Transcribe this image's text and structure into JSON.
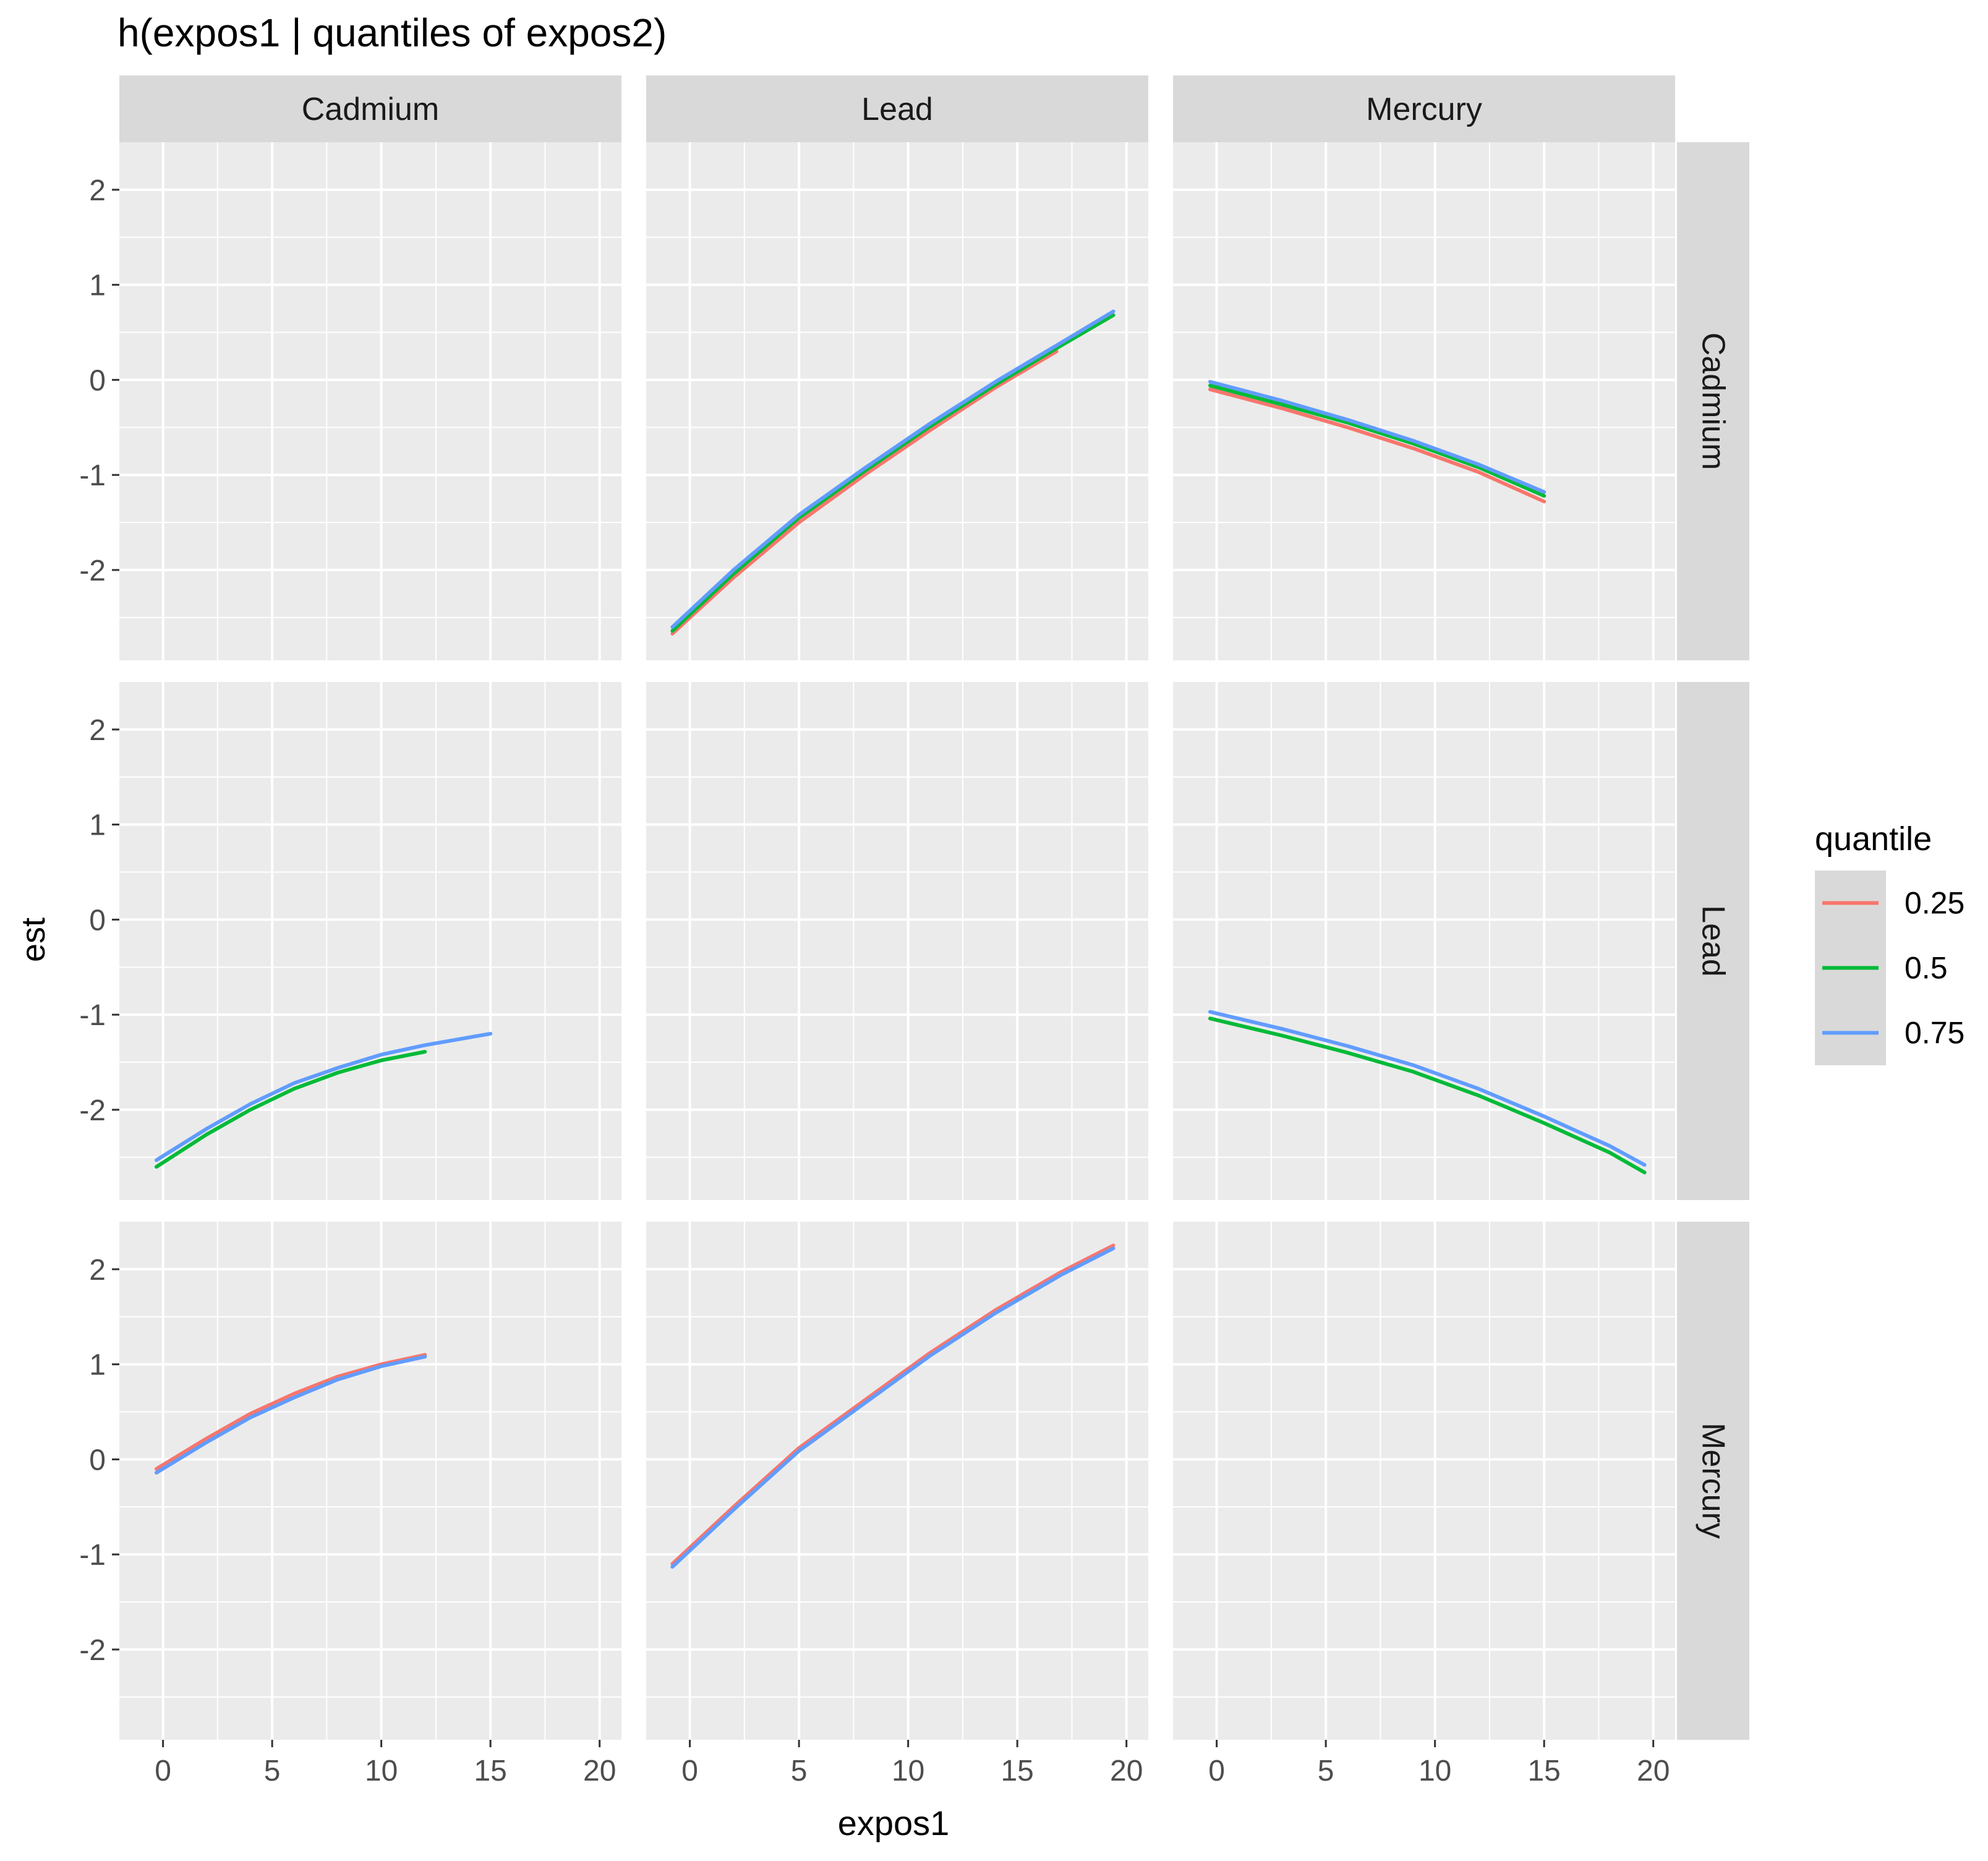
{
  "chart_data": {
    "type": "line",
    "title": "h(expos1 | quantiles of expos2)",
    "xlabel": "expos1",
    "ylabel": "est",
    "col_facets": [
      "Cadmium",
      "Lead",
      "Mercury"
    ],
    "row_facets": [
      "Cadmium",
      "Lead",
      "Mercury"
    ],
    "xlim": [
      -2,
      21
    ],
    "ylim": [
      -2.95,
      2.5
    ],
    "x_ticks": [
      0,
      5,
      10,
      15,
      20
    ],
    "x_tick_labels": [
      "0",
      "5",
      "10",
      "15",
      "20"
    ],
    "y_ticks": [
      -2,
      -1,
      0,
      1,
      2
    ],
    "y_tick_labels": [
      "-2",
      "-1",
      "0",
      "1",
      "2"
    ],
    "grid": true,
    "legend": {
      "title": "quantile",
      "position": "right",
      "entries": [
        {
          "label": "0.25",
          "color": "#F8766D"
        },
        {
          "label": "0.5",
          "color": "#00BA38"
        },
        {
          "label": "0.75",
          "color": "#619CFF"
        }
      ]
    },
    "panels": [
      {
        "row": "Cadmium",
        "col": "Cadmium",
        "series": []
      },
      {
        "row": "Cadmium",
        "col": "Lead",
        "series": [
          {
            "quantile": "0.25",
            "x": [
              -0.8,
              2,
              5,
              8,
              11,
              14,
              16.8
            ],
            "y": [
              -2.67,
              -2.08,
              -1.5,
              -1.0,
              -0.53,
              -0.08,
              0.3
            ]
          },
          {
            "quantile": "0.5",
            "x": [
              -0.8,
              2,
              5,
              8,
              11,
              14,
              17,
              19.4
            ],
            "y": [
              -2.64,
              -2.04,
              -1.45,
              -0.96,
              -0.49,
              -0.05,
              0.36,
              0.68
            ]
          },
          {
            "quantile": "0.75",
            "x": [
              -0.8,
              2,
              5,
              8,
              11,
              14,
              17,
              19.4
            ],
            "y": [
              -2.6,
              -2.0,
              -1.42,
              -0.93,
              -0.46,
              -0.02,
              0.39,
              0.72
            ]
          }
        ]
      },
      {
        "row": "Cadmium",
        "col": "Mercury",
        "series": [
          {
            "quantile": "0.25",
            "x": [
              -0.3,
              3,
              6,
              9,
              12,
              15
            ],
            "y": [
              -0.1,
              -0.3,
              -0.5,
              -0.72,
              -0.97,
              -1.28
            ]
          },
          {
            "quantile": "0.5",
            "x": [
              -0.3,
              3,
              6,
              9,
              12,
              15
            ],
            "y": [
              -0.06,
              -0.26,
              -0.45,
              -0.67,
              -0.92,
              -1.22
            ]
          },
          {
            "quantile": "0.75",
            "x": [
              -0.3,
              3,
              6,
              9,
              12,
              15
            ],
            "y": [
              -0.02,
              -0.22,
              -0.42,
              -0.64,
              -0.89,
              -1.18
            ]
          }
        ]
      },
      {
        "row": "Lead",
        "col": "Cadmium",
        "series": [
          {
            "quantile": "0.5",
            "x": [
              -0.3,
              2,
              4,
              6,
              8,
              10,
              12
            ],
            "y": [
              -2.6,
              -2.26,
              -2.0,
              -1.78,
              -1.61,
              -1.48,
              -1.39
            ]
          },
          {
            "quantile": "0.75",
            "x": [
              -0.3,
              2,
              4,
              6,
              8,
              10,
              12,
              15
            ],
            "y": [
              -2.53,
              -2.2,
              -1.94,
              -1.72,
              -1.56,
              -1.42,
              -1.32,
              -1.2
            ]
          }
        ]
      },
      {
        "row": "Lead",
        "col": "Lead",
        "series": []
      },
      {
        "row": "Lead",
        "col": "Mercury",
        "series": [
          {
            "quantile": "0.5",
            "x": [
              -0.3,
              3,
              6,
              9,
              12,
              15,
              18,
              19.6
            ],
            "y": [
              -1.04,
              -1.22,
              -1.4,
              -1.6,
              -1.85,
              -2.14,
              -2.45,
              -2.66
            ]
          },
          {
            "quantile": "0.75",
            "x": [
              -0.3,
              3,
              6,
              9,
              12,
              15,
              18,
              19.6
            ],
            "y": [
              -0.97,
              -1.15,
              -1.33,
              -1.53,
              -1.78,
              -2.07,
              -2.38,
              -2.58
            ]
          }
        ]
      },
      {
        "row": "Mercury",
        "col": "Cadmium",
        "series": [
          {
            "quantile": "0.25",
            "x": [
              -0.3,
              2,
              4,
              6,
              8,
              10,
              12
            ],
            "y": [
              -0.1,
              0.22,
              0.48,
              0.69,
              0.87,
              1.0,
              1.1
            ]
          },
          {
            "quantile": "0.75",
            "x": [
              -0.3,
              2,
              4,
              6,
              8,
              10,
              12
            ],
            "y": [
              -0.14,
              0.18,
              0.44,
              0.65,
              0.84,
              0.98,
              1.08
            ]
          }
        ]
      },
      {
        "row": "Mercury",
        "col": "Lead",
        "series": [
          {
            "quantile": "0.25",
            "x": [
              -0.8,
              2,
              5,
              8,
              11,
              14,
              17,
              19.4
            ],
            "y": [
              -1.1,
              -0.5,
              0.12,
              0.62,
              1.12,
              1.57,
              1.97,
              2.25
            ]
          },
          {
            "quantile": "0.75",
            "x": [
              -0.8,
              2,
              5,
              8,
              11,
              14,
              17,
              19.4
            ],
            "y": [
              -1.13,
              -0.53,
              0.09,
              0.59,
              1.09,
              1.54,
              1.94,
              2.22
            ]
          }
        ]
      },
      {
        "row": "Mercury",
        "col": "Mercury",
        "series": []
      }
    ]
  }
}
